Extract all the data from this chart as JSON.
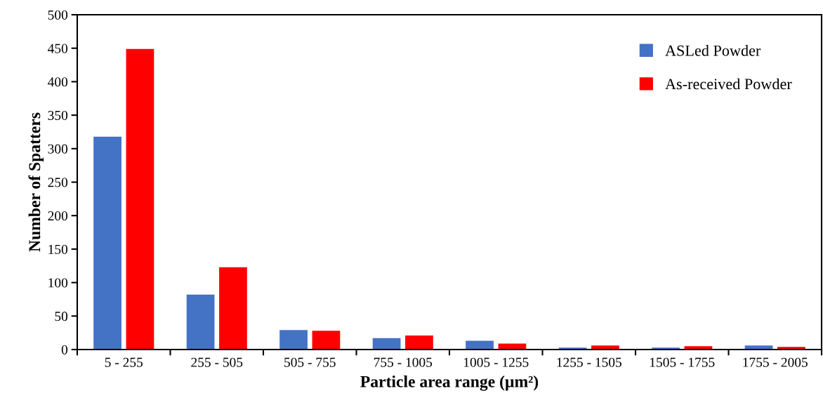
{
  "chart_data": {
    "type": "bar",
    "xlabel": "Particle area range (µm²)",
    "ylabel": "Number of Spatters",
    "categories": [
      "5 - 255",
      "255 - 505",
      "505 - 755",
      "755 - 1005",
      "1005 - 1255",
      "1255 - 1505",
      "1505 - 1755",
      "1755 - 2005"
    ],
    "series": [
      {
        "name": "ASLed Powder",
        "color": "#4472c4",
        "values": [
          318,
          82,
          29,
          17,
          13,
          3,
          3,
          6
        ]
      },
      {
        "name": "As-received Powder",
        "color": "#ff0000",
        "values": [
          449,
          123,
          28,
          21,
          9,
          6,
          5,
          4
        ]
      }
    ],
    "ylim": [
      0,
      500
    ],
    "yticks": [
      0,
      50,
      100,
      150,
      200,
      250,
      300,
      350,
      400,
      450,
      500
    ],
    "grid": false,
    "legend": "top right"
  }
}
